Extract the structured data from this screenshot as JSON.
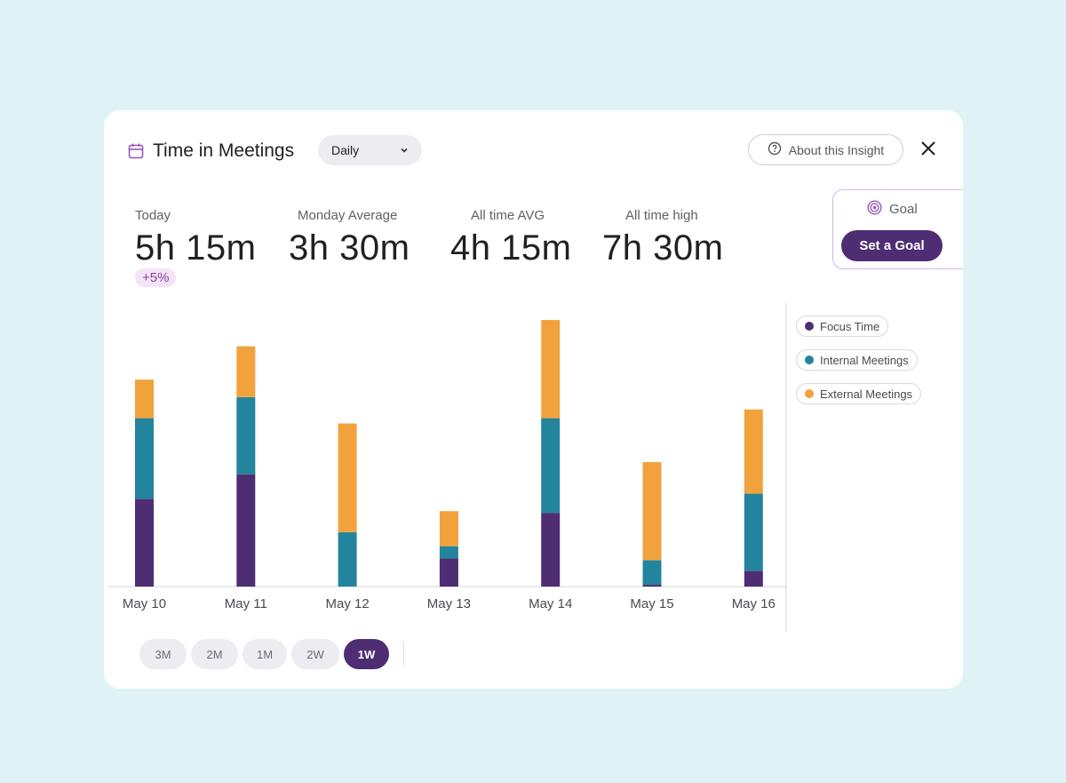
{
  "header": {
    "title": "Time in Meetings",
    "dropdown_value": "Daily",
    "about_label": "About this Insight"
  },
  "stats": [
    {
      "label": "Today",
      "value": "5h 15m",
      "change": "+5%"
    },
    {
      "label": "Monday Average",
      "value": "3h 30m"
    },
    {
      "label": "All time AVG",
      "value": "4h 15m"
    },
    {
      "label": "All time high",
      "value": "7h 30m"
    }
  ],
  "goal": {
    "label": "Goal",
    "button_label": "Set a Goal"
  },
  "legend": [
    {
      "label": "Focus Time",
      "color": "#4f2d73"
    },
    {
      "label": "Internal Meetings",
      "color": "#23859d"
    },
    {
      "label": "External Meetings",
      "color": "#f2a23c"
    }
  ],
  "ranges": [
    {
      "label": "3M",
      "active": false
    },
    {
      "label": "2M",
      "active": false
    },
    {
      "label": "1M",
      "active": false
    },
    {
      "label": "2W",
      "active": false
    },
    {
      "label": "1W",
      "active": true
    }
  ],
  "chart_data": {
    "type": "bar",
    "stacked": true,
    "categories": [
      "May 10",
      "May 11",
      "May 12",
      "May 13",
      "May 14",
      "May 15",
      "May 16"
    ],
    "ylim": [
      0,
      7.5
    ],
    "series": [
      {
        "name": "Focus Time",
        "values": [
          2.5,
          3.2,
          0,
          0.8,
          2.1,
          0.05,
          0.45
        ]
      },
      {
        "name": "Internal Meetings",
        "values": [
          2.3,
          2.2,
          1.55,
          0.35,
          2.7,
          0.7,
          2.2
        ]
      },
      {
        "name": "External Meetings",
        "values": [
          1.1,
          1.45,
          3.1,
          1.0,
          2.8,
          2.8,
          2.4
        ]
      }
    ]
  }
}
